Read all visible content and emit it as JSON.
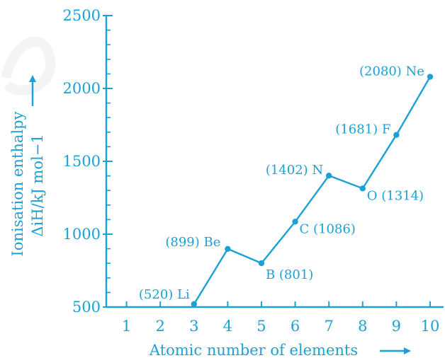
{
  "chart_data": {
    "type": "line",
    "xlabel": "Atomic number of elements",
    "ylabel_line1": "Ionisation enthalpy",
    "ylabel_line2": "ΔiH/kJ mol−1",
    "x_ticks": [
      "1",
      "2",
      "3",
      "4",
      "5",
      "6",
      "7",
      "8",
      "9",
      "10"
    ],
    "y_ticks": [
      "500",
      "1000",
      "1500",
      "2000",
      "2500"
    ],
    "xlim": [
      0.4,
      10.4
    ],
    "ylim": [
      500,
      2500
    ],
    "grid": false,
    "series": [
      {
        "points": [
          {
            "x": 3,
            "y": 520,
            "label": "(520) Li"
          },
          {
            "x": 4,
            "y": 899,
            "label": "(899) Be"
          },
          {
            "x": 5,
            "y": 801,
            "label": "B (801)"
          },
          {
            "x": 6,
            "y": 1086,
            "label": "C (1086)"
          },
          {
            "x": 7,
            "y": 1402,
            "label": "(1402) N"
          },
          {
            "x": 8,
            "y": 1314,
            "label": "O (1314)"
          },
          {
            "x": 9,
            "y": 1681,
            "label": "(1681) F"
          },
          {
            "x": 10,
            "y": 2080,
            "label": "(2080) Ne"
          }
        ]
      }
    ],
    "colors": {
      "ink": "#1aa1d6"
    }
  }
}
